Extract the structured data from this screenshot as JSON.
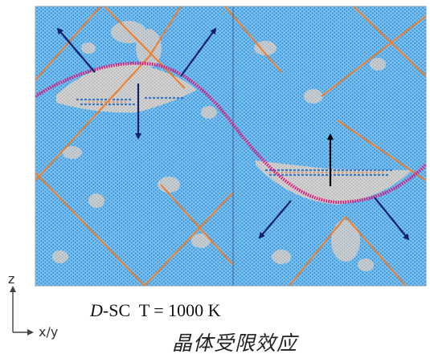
{
  "axis": {
    "vertical_label": "z",
    "horizontal_label": "x/y"
  },
  "caption": {
    "prefix_italic": "D",
    "rest": "-SC  T = 1000 K"
  },
  "subtitle": "晶体受限效应",
  "colors": {
    "background": "#ffffff",
    "crystal_blue": "#2f8fd8",
    "crystal_light": "#6fb8ea",
    "defect_gray": "#c8c8c8",
    "interface_magenta": "#e0147a",
    "grain_boundary_orange": "#f07d2a",
    "arrow_navy": "#14206e",
    "arrow_black": "#000000"
  }
}
